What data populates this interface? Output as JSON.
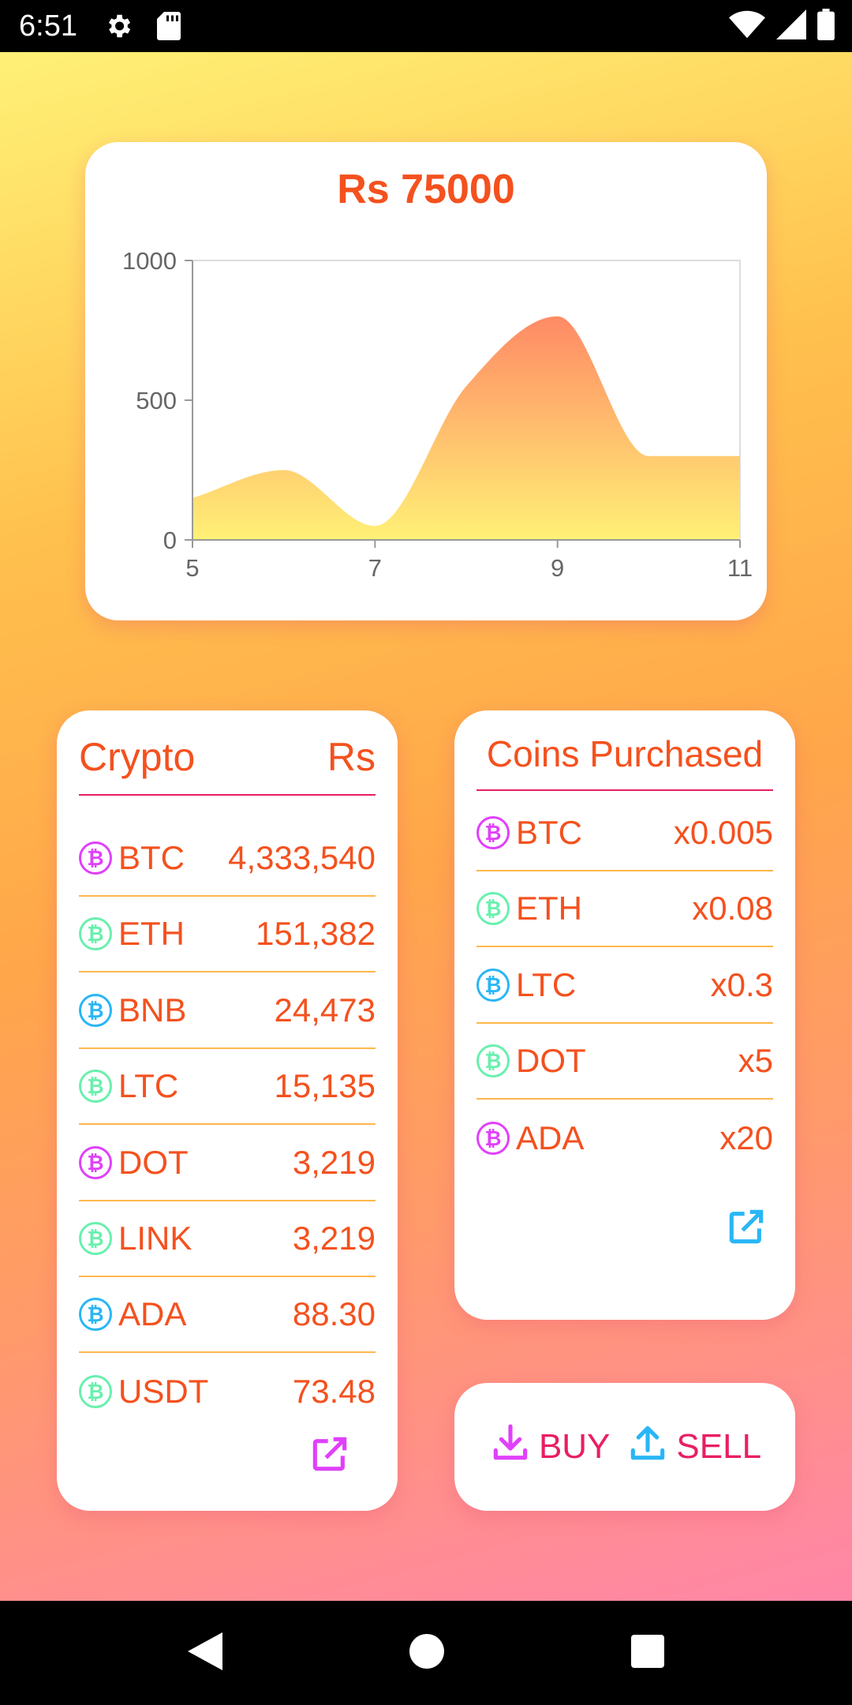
{
  "status_bar": {
    "time": "6:51",
    "icons_left": [
      "gear-icon",
      "sd-card-icon"
    ],
    "icons_right": [
      "wifi-icon",
      "signal-icon",
      "battery-icon"
    ]
  },
  "chart_card": {
    "title": "Rs 75000"
  },
  "chart_data": {
    "type": "area",
    "title": "Rs 75000",
    "xlabel": "",
    "ylabel": "",
    "x": [
      5,
      6,
      7,
      8,
      9,
      10,
      11
    ],
    "y": [
      150,
      250,
      50,
      550,
      800,
      300,
      300
    ],
    "xlim": [
      5,
      11
    ],
    "ylim": [
      0,
      1000
    ],
    "x_ticks": [
      "5",
      "7",
      "9",
      "11"
    ],
    "x_tick_values": [
      5,
      7,
      9,
      11
    ],
    "y_ticks": [
      "0",
      "500",
      "1000"
    ],
    "y_tick_values": [
      0,
      500,
      1000
    ],
    "grid": false,
    "colors": {
      "top": "#ff8a65",
      "bottom": "#fff176"
    }
  },
  "crypto_card": {
    "header_left": "Crypto",
    "header_right": "Rs",
    "rows": [
      {
        "symbol": "BTC",
        "value": "4,333,540",
        "icon_color": "#e040fb"
      },
      {
        "symbol": "ETH",
        "value": "151,382",
        "icon_color": "#69f0ae"
      },
      {
        "symbol": "BNB",
        "value": "24,473",
        "icon_color": "#29b6f6"
      },
      {
        "symbol": "LTC",
        "value": "15,135",
        "icon_color": "#69f0ae"
      },
      {
        "symbol": "DOT",
        "value": "3,219",
        "icon_color": "#e040fb"
      },
      {
        "symbol": "LINK",
        "value": "3,219",
        "icon_color": "#69f0ae"
      },
      {
        "symbol": "ADA",
        "value": "88.30",
        "icon_color": "#29b6f6"
      },
      {
        "symbol": "USDT",
        "value": "73.48",
        "icon_color": "#69f0ae"
      }
    ],
    "open_icon_color": "#e040fb"
  },
  "coins_card": {
    "header": "Coins Purchased",
    "rows": [
      {
        "symbol": "BTC",
        "value": "x0.005",
        "icon_color": "#e040fb"
      },
      {
        "symbol": "ETH",
        "value": "x0.08",
        "icon_color": "#69f0ae"
      },
      {
        "symbol": "LTC",
        "value": "x0.3",
        "icon_color": "#29b6f6"
      },
      {
        "symbol": "DOT",
        "value": "x5",
        "icon_color": "#69f0ae"
      },
      {
        "symbol": "ADA",
        "value": "x20",
        "icon_color": "#e040fb"
      }
    ],
    "open_icon_color": "#29b6f6"
  },
  "trade_card": {
    "buy_label": "BUY",
    "sell_label": "SELL",
    "buy_icon_color": "#e040fb",
    "sell_icon_color": "#29b6f6"
  },
  "coin_glyph": "₿"
}
